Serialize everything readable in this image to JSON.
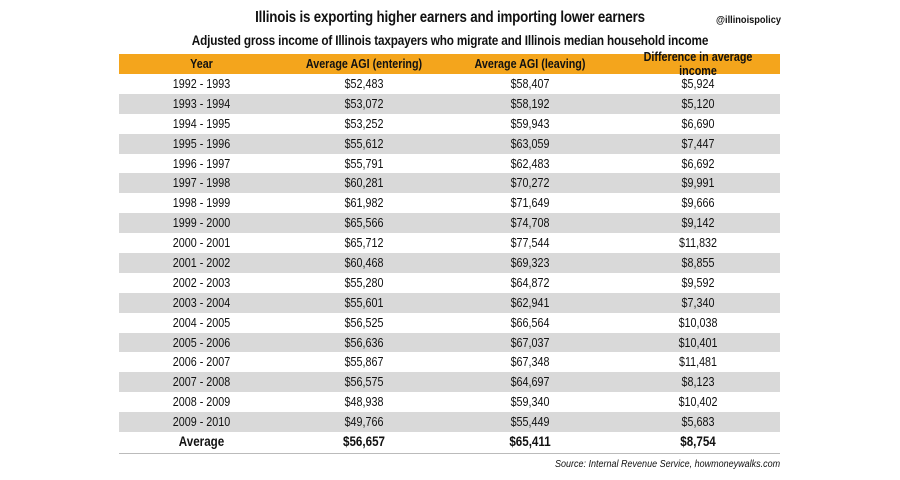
{
  "chart_data": {
    "type": "table",
    "title": "Illinois is exporting higher earners and importing lower earners",
    "subtitle": "Adjusted gross income of Illinois taxpayers who migrate and Illinois median household income",
    "handle": "@illinoispolicy",
    "source": "Source: Internal Revenue Service, howmoneywalks.com",
    "columns": [
      "Year",
      "Average AGI (entering)",
      "Average AGI (leaving)",
      "Difference in average income"
    ],
    "rows": [
      [
        "1992 - 1993",
        "$52,483",
        "$58,407",
        "$5,924"
      ],
      [
        "1993 - 1994",
        "$53,072",
        "$58,192",
        "$5,120"
      ],
      [
        "1994 - 1995",
        "$53,252",
        "$59,943",
        "$6,690"
      ],
      [
        "1995 - 1996",
        "$55,612",
        "$63,059",
        "$7,447"
      ],
      [
        "1996 - 1997",
        "$55,791",
        "$62,483",
        "$6,692"
      ],
      [
        "1997 - 1998",
        "$60,281",
        "$70,272",
        "$9,991"
      ],
      [
        "1998 - 1999",
        "$61,982",
        "$71,649",
        "$9,666"
      ],
      [
        "1999 - 2000",
        "$65,566",
        "$74,708",
        "$9,142"
      ],
      [
        "2000 - 2001",
        "$65,712",
        "$77,544",
        "$11,832"
      ],
      [
        "2001 - 2002",
        "$60,468",
        "$69,323",
        "$8,855"
      ],
      [
        "2002 - 2003",
        "$55,280",
        "$64,872",
        "$9,592"
      ],
      [
        "2003 - 2004",
        "$55,601",
        "$62,941",
        "$7,340"
      ],
      [
        "2004 - 2005",
        "$56,525",
        "$66,564",
        "$10,038"
      ],
      [
        "2005 - 2006",
        "$56,636",
        "$67,037",
        "$10,401"
      ],
      [
        "2006 - 2007",
        "$55,867",
        "$67,348",
        "$11,481"
      ],
      [
        "2007 - 2008",
        "$56,575",
        "$64,697",
        "$8,123"
      ],
      [
        "2008 - 2009",
        "$48,938",
        "$59,340",
        "$10,402"
      ],
      [
        "2009 - 2010",
        "$49,766",
        "$55,449",
        "$5,683"
      ]
    ],
    "average": [
      "Average",
      "$56,657",
      "$65,411",
      "$8,754"
    ]
  },
  "colors": {
    "header": "#f4a51c",
    "stripe": "#d9d9d9"
  }
}
